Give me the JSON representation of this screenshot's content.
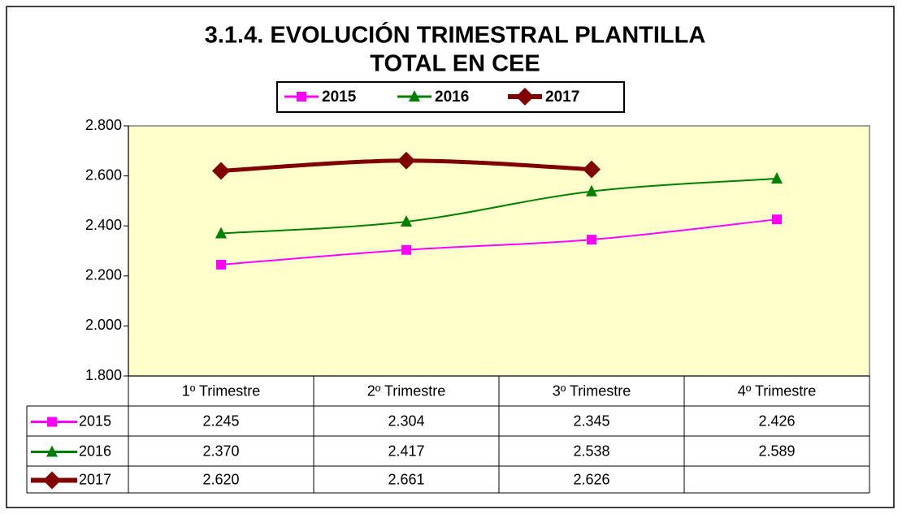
{
  "chart_data": {
    "type": "line",
    "title": [
      "3.1.4. EVOLUCIÓN TRIMESTRAL PLANTILLA",
      "TOTAL EN CEE"
    ],
    "categories": [
      "1º Trimestre",
      "2º Trimestre",
      "3º Trimestre",
      "4º Trimestre"
    ],
    "series": [
      {
        "name": "2015",
        "color": "#ff00ff",
        "marker": "square",
        "values": [
          2245,
          2304,
          2345,
          2426
        ],
        "value_labels": [
          "2.245",
          "2.304",
          "2.345",
          "2.426"
        ]
      },
      {
        "name": "2016",
        "color": "#008000",
        "marker": "triangle",
        "values": [
          2370,
          2417,
          2538,
          2589
        ],
        "value_labels": [
          "2.370",
          "2.417",
          "2.538",
          "2.589"
        ]
      },
      {
        "name": "2017",
        "color": "#800000",
        "marker": "diamond",
        "values": [
          2620,
          2661,
          2626,
          null
        ],
        "value_labels": [
          "2.620",
          "2.661",
          "2.626",
          null
        ]
      }
    ],
    "ylim": [
      1800,
      2800
    ],
    "yticks": [
      {
        "value": 1800,
        "label": "1.800"
      },
      {
        "value": 2000,
        "label": "2.000"
      },
      {
        "value": 2200,
        "label": "2.200"
      },
      {
        "value": 2400,
        "label": "2.400"
      },
      {
        "value": 2600,
        "label": "2.600"
      },
      {
        "value": 2800,
        "label": "2.800"
      }
    ],
    "grid": false,
    "smooth": true,
    "plot_background": "#ffffcc"
  }
}
